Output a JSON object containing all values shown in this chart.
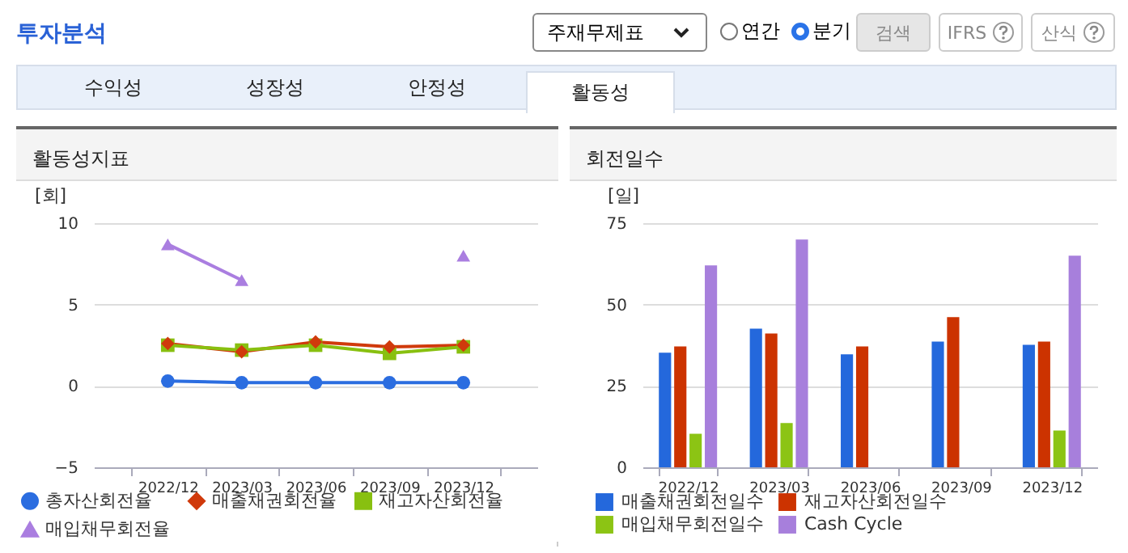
{
  "chart_data": [
    {
      "type": "other",
      "title": "투자분석",
      "annotations": [
        "주재무제표",
        "연간",
        "분기",
        "검색",
        "IFRS",
        "산식",
        "수익성",
        "성장성",
        "안정성",
        "활동성"
      ]
    },
    {
      "type": "line",
      "title": "활동성지표",
      "ylabel": "[회]",
      "categories": [
        "2022/12",
        "2023/03",
        "2023/06",
        "2023/09",
        "2023/12"
      ],
      "ylim": [
        -5,
        10
      ],
      "yticks": [
        -5,
        0,
        5,
        10
      ],
      "grid": "y",
      "legend": "bottom",
      "series": [
        {
          "name": "총자산회전율",
          "color": "#2b6de0",
          "marker": "circle",
          "values": [
            0.3,
            0.2,
            0.2,
            0.2,
            0.2
          ]
        },
        {
          "name": "매출채권회전율",
          "color": "#d03a0c",
          "marker": "diamond",
          "values": [
            2.6,
            2.1,
            2.7,
            2.4,
            2.5
          ]
        },
        {
          "name": "재고자산회전율",
          "color": "#88c010",
          "marker": "square",
          "values": [
            2.5,
            2.2,
            2.5,
            2.0,
            2.4
          ]
        },
        {
          "name": "매입채무회전율",
          "color": "#aa7ee0",
          "marker": "triangle",
          "values": [
            8.7,
            6.5,
            null,
            null,
            8.0
          ]
        }
      ]
    },
    {
      "type": "bar",
      "title": "회전일수",
      "ylabel": "[일]",
      "categories": [
        "2022/12",
        "2023/03",
        "2023/06",
        "2023/09",
        "2023/12"
      ],
      "ylim": [
        0,
        75
      ],
      "yticks": [
        0,
        25,
        50,
        75
      ],
      "grid": "y",
      "legend": "bottom",
      "series": [
        {
          "name": "매출채권회전일수",
          "color": "#2468dc",
          "values": [
            35.2,
            42.6,
            34.7,
            38.6,
            37.6
          ]
        },
        {
          "name": "재고자산회전일수",
          "color": "#cc3300",
          "values": [
            37.1,
            41.1,
            37.1,
            46.1,
            38.6
          ]
        },
        {
          "name": "매입채무회전일수",
          "color": "#8cc414",
          "values": [
            10.3,
            13.6,
            null,
            null,
            11.3
          ]
        },
        {
          "name": "Cash Cycle",
          "color": "#a77fdc",
          "values": [
            62,
            70,
            null,
            null,
            65
          ]
        }
      ]
    }
  ]
}
